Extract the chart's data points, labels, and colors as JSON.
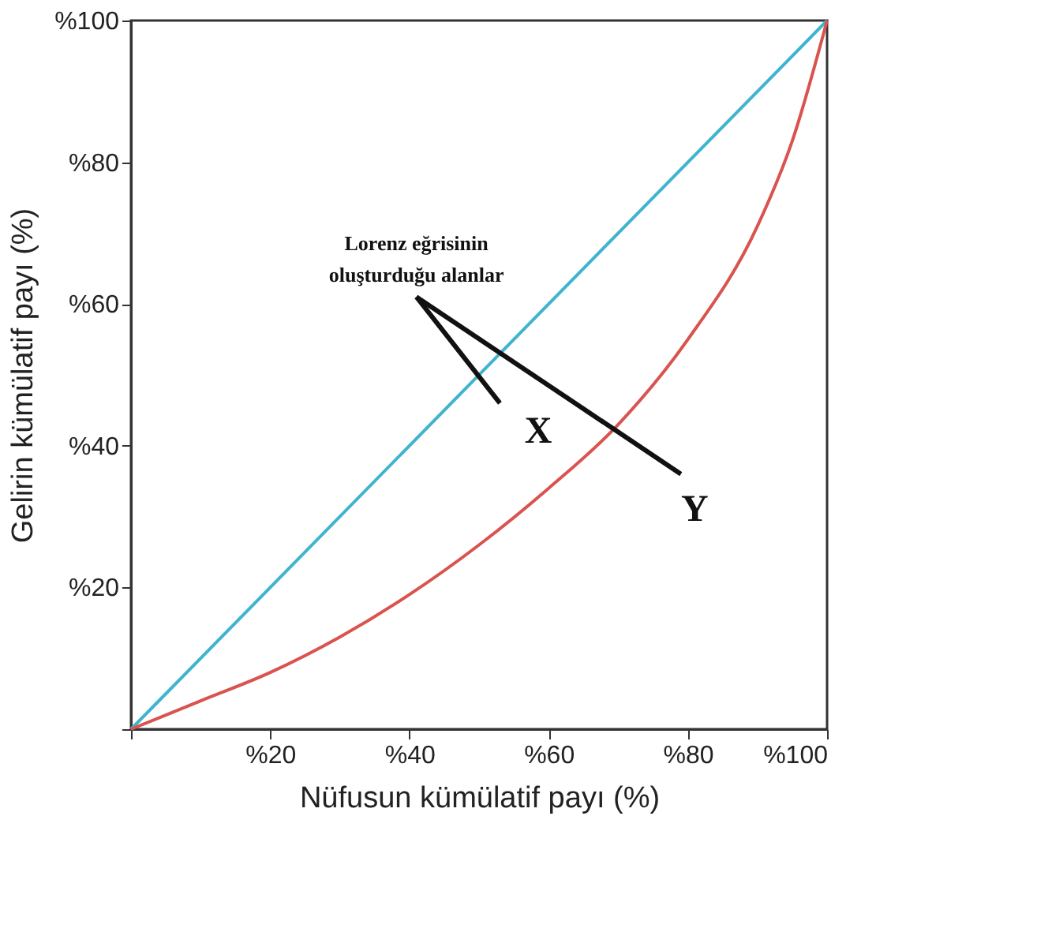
{
  "chart_data": {
    "type": "line",
    "xlabel": "Nüfusun kümülatif payı (%)",
    "ylabel": "Gelirin kümülatif payı (%)",
    "series": [
      {
        "color": "#3fb4cf",
        "x": [
          0,
          100
        ],
        "values": [
          0,
          100
        ]
      },
      {
        "color": "#d9534f",
        "x": [
          0,
          10,
          20,
          30,
          40,
          50,
          60,
          70,
          80,
          90,
          95,
          100
        ],
        "values": [
          0,
          4,
          8,
          13,
          19,
          26,
          34,
          43,
          55,
          71,
          83,
          100
        ]
      }
    ],
    "xlim": [
      0,
      100
    ],
    "ylim": [
      0,
      100
    ],
    "xticks": [
      {
        "value": 0,
        "label": null
      },
      {
        "value": 20,
        "label": "%20"
      },
      {
        "value": 40,
        "label": "%40"
      },
      {
        "value": 60,
        "label": "%60"
      },
      {
        "value": 80,
        "label": "%80"
      },
      {
        "value": 100,
        "label": "%100"
      }
    ],
    "yticks": [
      {
        "value": 0,
        "label": null
      },
      {
        "value": 20,
        "label": "%20"
      },
      {
        "value": 40,
        "label": "%40"
      },
      {
        "value": 60,
        "label": "%60"
      },
      {
        "value": 80,
        "label": "%80"
      },
      {
        "value": 100,
        "label": "%100"
      }
    ],
    "annotations": [
      "Lorenz eğrisinin\noluşturduğu alanlar",
      "X",
      "Y"
    ],
    "marker": "none",
    "line_style": "solid"
  }
}
